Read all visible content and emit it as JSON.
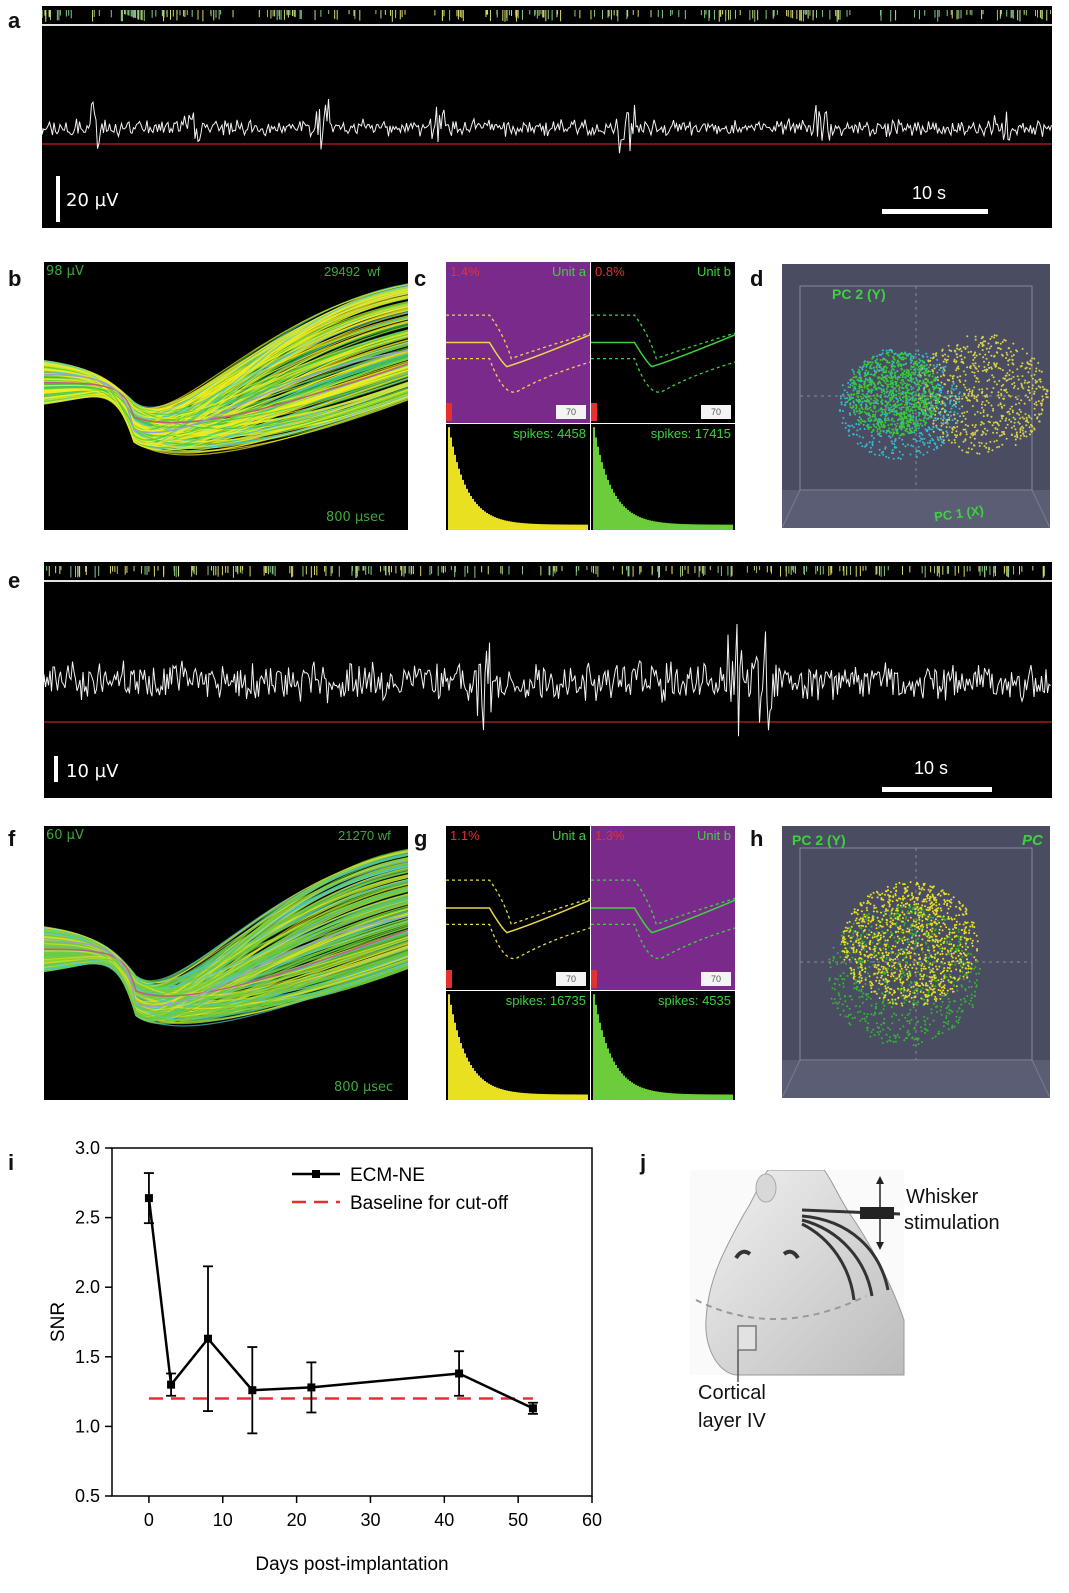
{
  "panel_labels": {
    "a": "a",
    "b": "b",
    "c": "c",
    "d": "d",
    "e": "e",
    "f": "f",
    "g": "g",
    "h": "h",
    "i": "i",
    "j": "j"
  },
  "trace_a": {
    "scale_bar_label": "20 µV",
    "time_bar_label": "10 s"
  },
  "trace_e": {
    "scale_bar_label": "10 µV",
    "time_bar_label": "10 s"
  },
  "waveforms_b": {
    "amplitude_label": "98 µV",
    "count_label": "29492",
    "wf_suffix": "wf",
    "time_label": "800 µsec"
  },
  "waveforms_f": {
    "amplitude_label": "60 µV",
    "count_label": "21270",
    "wf_suffix": "wf",
    "time_label": "800 µsec"
  },
  "units_c": [
    {
      "pct": "1.4%",
      "name": "Unit a",
      "spikes": "spikes: 4458",
      "box": "70",
      "bg": "#7a2a8a",
      "color": "#e6d84a",
      "hist": "#e8e020"
    },
    {
      "pct": "0.8%",
      "name": "Unit b",
      "spikes": "spikes: 17415",
      "box": "70",
      "bg": "#000000",
      "color": "#3ed13e",
      "hist": "#6ccc3c"
    }
  ],
  "units_g": [
    {
      "pct": "1.1%",
      "name": "Unit a",
      "spikes": "spikes: 16735",
      "box": "70",
      "bg": "#000000",
      "color": "#e6d84a",
      "hist": "#e8e020"
    },
    {
      "pct": "1.3%",
      "name": "Unit b",
      "spikes": "spikes: 4535",
      "box": "70",
      "bg": "#7a2a8a",
      "color": "#3ed13e",
      "hist": "#6ccc3c"
    }
  ],
  "pca_d": {
    "axis_y": "PC 2 (Y)",
    "axis_x": "PC 1 (X)"
  },
  "pca_h": {
    "axis_y": "PC 2 (Y)",
    "axis_x": "PC"
  },
  "diagram_j": {
    "whisker_label_1": "Whisker",
    "whisker_label_2": "stimulation",
    "cortex_label_1": "Cortical",
    "cortex_label_2": "layer IV"
  },
  "chart_data": {
    "type": "line",
    "xlabel": "Days post-implantation",
    "ylabel": "SNR",
    "xlim": [
      -5,
      60
    ],
    "ylim": [
      0.5,
      3.0
    ],
    "xticks": [
      0,
      10,
      20,
      30,
      40,
      50,
      60
    ],
    "yticks": [
      0.5,
      1.0,
      1.5,
      2.0,
      2.5,
      3.0
    ],
    "ytick_labels": [
      "0.5",
      "1.0",
      "1.5",
      "2.0",
      "2.5",
      "3.0"
    ],
    "legend_position": "top-right",
    "series": [
      {
        "name": "ECM-NE",
        "color": "#000000",
        "x": [
          0,
          3,
          8,
          14,
          22,
          42,
          52
        ],
        "y": [
          2.64,
          1.3,
          1.63,
          1.26,
          1.28,
          1.38,
          1.13
        ],
        "err": [
          0.18,
          0.08,
          0.52,
          0.31,
          0.18,
          0.16,
          0.04
        ]
      },
      {
        "name": "Baseline for cut-off",
        "color": "#e53030",
        "dashed": true,
        "x": [
          0,
          52
        ],
        "y": [
          1.2,
          1.2
        ]
      }
    ]
  }
}
